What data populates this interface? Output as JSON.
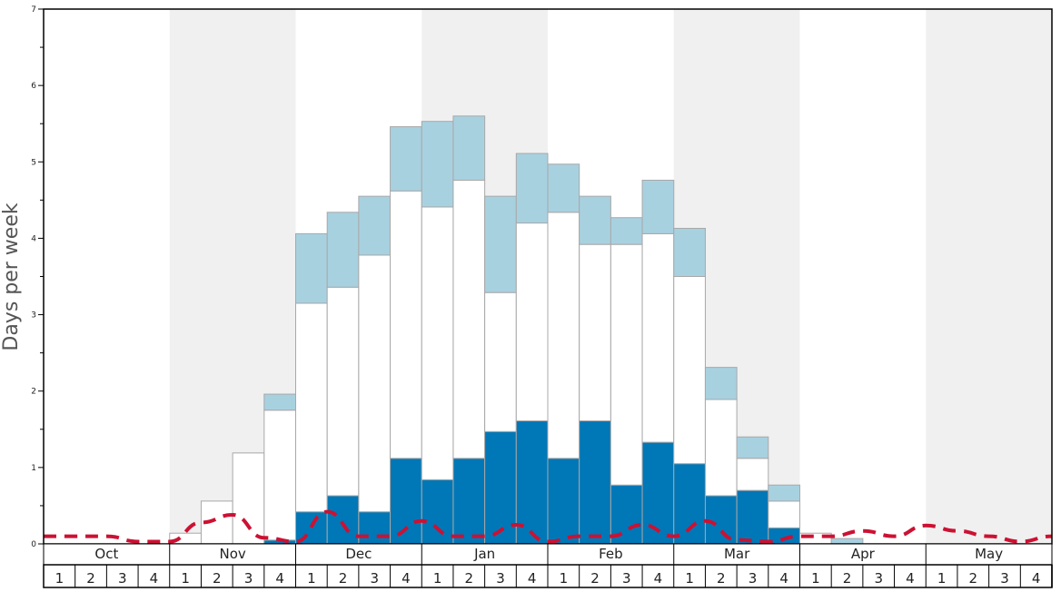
{
  "chart_data": {
    "type": "bar",
    "stacked": true,
    "ylabel": "Days per week",
    "ylim": [
      0,
      7
    ],
    "y_ticks": [
      "0",
      "1",
      "2",
      "3",
      "4",
      "5",
      "6",
      "7"
    ],
    "months": [
      "Oct",
      "Nov",
      "Dec",
      "Jan",
      "Feb",
      "Mar",
      "Apr",
      "May"
    ],
    "week_labels": [
      "1",
      "2",
      "3",
      "4"
    ],
    "shaded_months": [
      false,
      true,
      false,
      true,
      false,
      true,
      false,
      true
    ],
    "series": [
      {
        "color": "#0077b6",
        "values": [
          0,
          0,
          0,
          0,
          0,
          0,
          0,
          0.05,
          0.42,
          0.63,
          0.42,
          1.12,
          0.84,
          1.12,
          1.47,
          1.61,
          1.12,
          1.61,
          0.77,
          1.33,
          1.05,
          0.63,
          0.7,
          0.21,
          0,
          0,
          0,
          0,
          0,
          0,
          0,
          0
        ]
      },
      {
        "color": "#ffffff",
        "values": [
          0,
          0,
          0,
          0,
          0.14,
          0.56,
          1.19,
          1.7,
          2.73,
          2.73,
          3.36,
          3.5,
          3.57,
          3.64,
          1.82,
          2.59,
          3.22,
          2.31,
          3.15,
          2.73,
          2.45,
          1.26,
          0.42,
          0.35,
          0.14,
          0,
          0,
          0,
          0,
          0,
          0,
          0
        ]
      },
      {
        "color": "#a8d1e0",
        "values": [
          0,
          0,
          0,
          0,
          0,
          0,
          0,
          0.21,
          0.91,
          0.98,
          0.77,
          0.84,
          1.12,
          0.84,
          1.26,
          0.91,
          0.63,
          0.63,
          0.35,
          0.7,
          0.63,
          0.42,
          0.28,
          0.21,
          0,
          0.07,
          0,
          0,
          0,
          0,
          0,
          0
        ]
      }
    ],
    "dashed_line": {
      "color": "#cc1133",
      "values": [
        0.1,
        0.1,
        0.1,
        0.03,
        0.03,
        0.28,
        0.38,
        0.08,
        0.03,
        0.42,
        0.1,
        0.1,
        0.3,
        0.1,
        0.1,
        0.25,
        0.03,
        0.1,
        0.1,
        0.25,
        0.1,
        0.3,
        0.05,
        0.03,
        0.1,
        0.1,
        0.17,
        0.1,
        0.24,
        0.17,
        0.1,
        0.03,
        0.1
      ]
    }
  }
}
